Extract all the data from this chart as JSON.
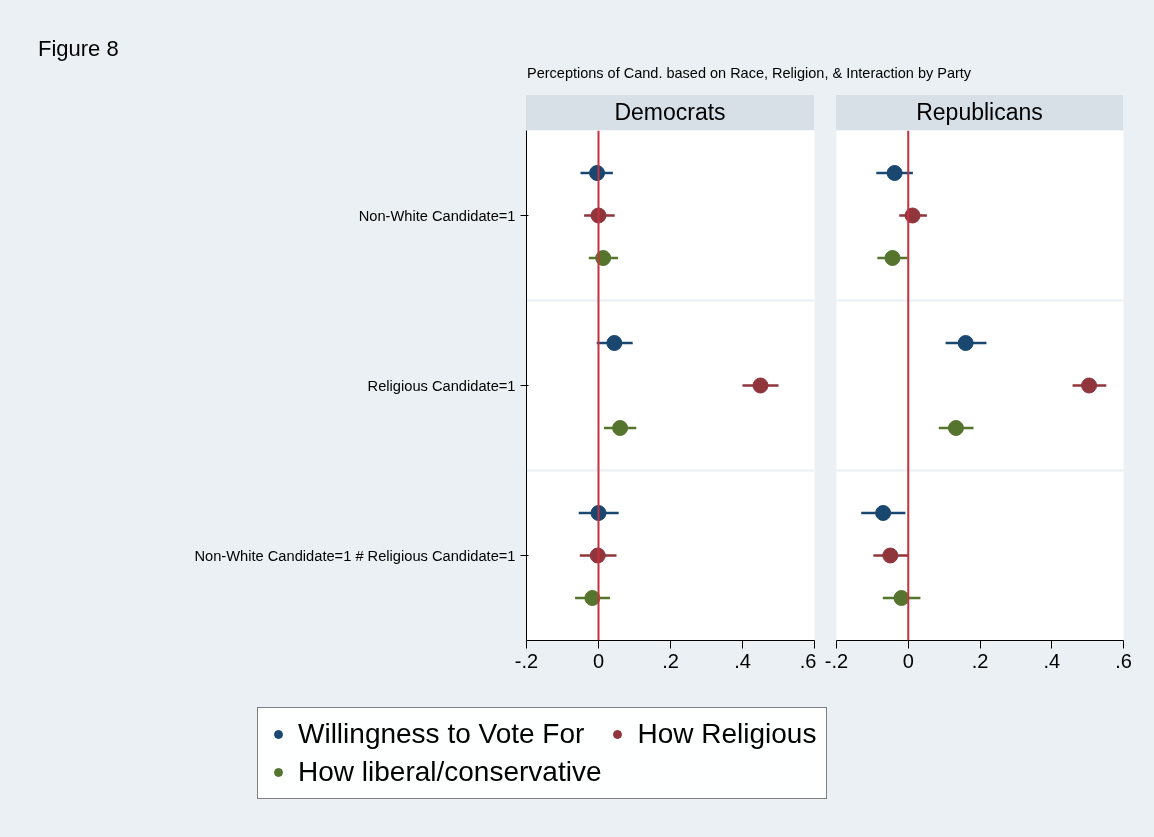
{
  "chart_data": [
    {
      "type": "scatter",
      "orientation": "horizontal",
      "title": "Democrats",
      "annotations": [
        "Figure 8",
        "Perceptions of Cand. based on Race, Religion, & Interaction by Party"
      ],
      "categories": [
        "Non-White Candidate=1",
        "Religious Candidate=1",
        "Non-White Candidate=1 # Religious Candidate=1"
      ],
      "series": [
        {
          "name": "Willingness to Vote For",
          "color": "#1a476f",
          "values": [
            -0.004,
            0.044,
            0.0
          ],
          "errors": [
            [
              -0.05,
              0.04
            ],
            [
              -0.005,
              0.095
            ],
            [
              -0.055,
              0.056
            ]
          ]
        },
        {
          "name": "How Religious",
          "color": "#90353b",
          "values": [
            0.0,
            0.45,
            -0.002
          ],
          "errors": [
            [
              -0.04,
              0.045
            ],
            [
              0.4,
              0.5
            ],
            [
              -0.052,
              0.05
            ]
          ]
        },
        {
          "name": "How liberal/conservative",
          "color": "#55752f",
          "values": [
            0.013,
            0.06,
            -0.017
          ],
          "errors": [
            [
              -0.027,
              0.054
            ],
            [
              0.015,
              0.105
            ],
            [
              -0.065,
              0.032
            ]
          ]
        }
      ],
      "xlim": [
        -0.2,
        0.6
      ],
      "xticks": [
        {
          "value": -0.2,
          "label": "-.2"
        },
        0,
        {
          "value": 0.2,
          "label": ".2"
        },
        {
          "value": 0.4,
          "label": ".4"
        },
        {
          "value": 0.6,
          "label": ".6"
        }
      ],
      "ref_lines": [
        {
          "axis": "x",
          "value": 0,
          "color": "#c4323f"
        }
      ],
      "marker": "circle",
      "grid": "y",
      "legend": "bottom"
    },
    {
      "type": "scatter",
      "orientation": "horizontal",
      "title": "Republicans",
      "categories": [
        null,
        null,
        null
      ],
      "series": [
        {
          "color": "#1a476f",
          "values": [
            -0.038,
            0.16,
            -0.07
          ],
          "errors": [
            [
              -0.089,
              0.013
            ],
            [
              0.104,
              0.218
            ],
            [
              -0.131,
              -0.008
            ]
          ]
        },
        {
          "color": "#90353b",
          "values": [
            0.012,
            0.504,
            -0.05
          ],
          "errors": [
            [
              -0.025,
              0.052
            ],
            [
              0.458,
              0.552
            ],
            [
              -0.097,
              0.0
            ]
          ]
        },
        {
          "color": "#55752f",
          "values": [
            -0.044,
            0.133,
            -0.019
          ],
          "errors": [
            [
              -0.086,
              -0.002
            ],
            [
              0.085,
              0.182
            ],
            [
              -0.071,
              0.034
            ]
          ]
        }
      ],
      "xlim": [
        -0.2,
        0.6
      ],
      "xticks": [
        {
          "value": -0.2,
          "label": "-.2"
        },
        0,
        {
          "value": 0.2,
          "label": ".2"
        },
        {
          "value": 0.4,
          "label": ".4"
        },
        {
          "value": 0.6,
          "label": ".6"
        }
      ],
      "ref_lines": [
        {
          "axis": "x",
          "value": 0,
          "color": "#c4323f"
        }
      ],
      "marker": "circle",
      "grid": "y",
      "tick_labels": "x"
    }
  ]
}
